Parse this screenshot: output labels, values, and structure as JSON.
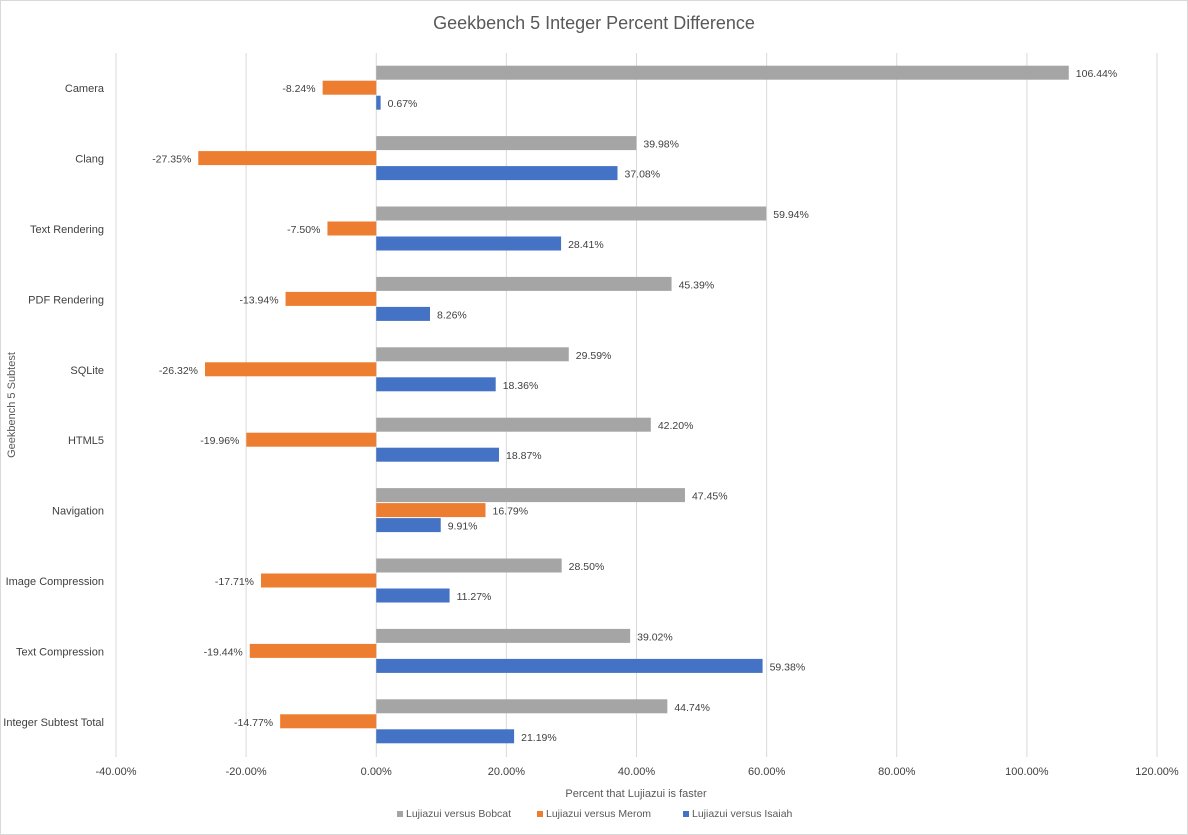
{
  "chart_data": {
    "type": "bar",
    "orientation": "horizontal",
    "title": "Geekbench 5 Integer Percent Difference",
    "xlabel": "Percent that Lujiazui is faster",
    "ylabel": "Geekbench 5 Subtest",
    "xlim": [
      -40,
      120
    ],
    "xticks": [
      -40,
      -20,
      0,
      20,
      40,
      60,
      80,
      100,
      120
    ],
    "xtick_labels": [
      "-40.00%",
      "-20.00%",
      "0.00%",
      "20.00%",
      "40.00%",
      "60.00%",
      "80.00%",
      "100.00%",
      "120.00%"
    ],
    "grid": true,
    "legend_position": "bottom",
    "categories": [
      "Camera",
      "Clang",
      "Text Rendering",
      "PDF Rendering",
      "SQLite",
      "HTML5",
      "Navigation",
      "Image Compression",
      "Text Compression",
      "Integer Subtest Total"
    ],
    "series": [
      {
        "name": "Lujiazui versus Bobcat",
        "color": "#a5a5a5",
        "values": [
          106.44,
          39.98,
          59.94,
          45.39,
          29.59,
          42.2,
          47.45,
          28.5,
          39.02,
          44.74
        ],
        "labels": [
          "106.44%",
          "39.98%",
          "59.94%",
          "45.39%",
          "29.59%",
          "42.20%",
          "47.45%",
          "28.50%",
          "39.02%",
          "44.74%"
        ]
      },
      {
        "name": "Lujiazui versus Merom",
        "color": "#ed7d31",
        "values": [
          -8.24,
          -27.35,
          -7.5,
          -13.94,
          -26.32,
          -19.96,
          16.79,
          -17.71,
          -19.44,
          -14.77
        ],
        "labels": [
          "-8.24%",
          "-27.35%",
          "-7.50%",
          "-13.94%",
          "-26.32%",
          "-19.96%",
          "16.79%",
          "-17.71%",
          "-19.44%",
          "-14.77%"
        ]
      },
      {
        "name": "Lujiazui versus Isaiah",
        "color": "#4472c4",
        "values": [
          0.67,
          37.08,
          28.41,
          8.26,
          18.36,
          18.87,
          9.91,
          11.27,
          59.38,
          21.19
        ],
        "labels": [
          "0.67%",
          "37.08%",
          "28.41%",
          "8.26%",
          "18.36%",
          "18.87%",
          "9.91%",
          "11.27%",
          "59.38%",
          "21.19%"
        ]
      }
    ]
  }
}
